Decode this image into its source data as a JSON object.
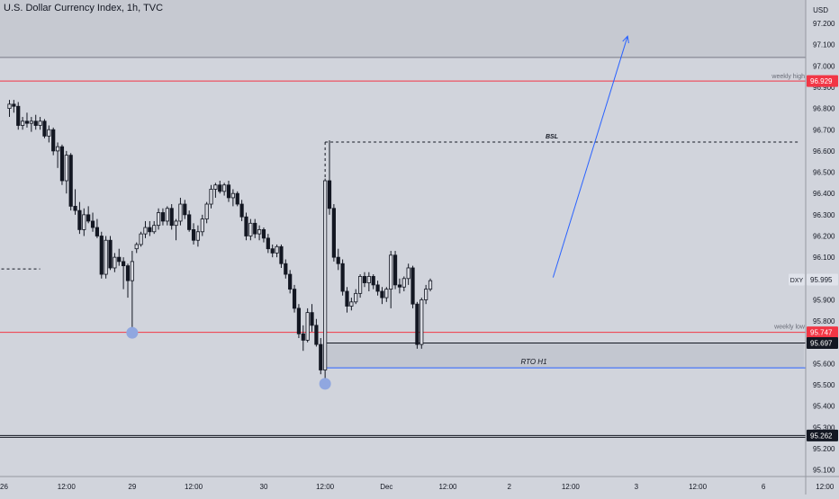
{
  "header": {
    "title": "U.S. Dollar Currency Index, 1h, TVC"
  },
  "colors": {
    "background": "#d1d4dc",
    "upper_zone": "#c6c9d1",
    "candle_up": "#d9dbe2",
    "candle_down": "#131722",
    "wick": "#131722",
    "red_line": "#f23645",
    "blue_drawing": "#2962ff",
    "blue_marker": "#90a7e0",
    "rto_box": "#c3c7d0",
    "axis_text": "#131722",
    "black_tag": "#131722",
    "red_tag": "#f23645"
  },
  "chart_data": {
    "type": "candlestick",
    "title": "U.S. Dollar Currency Index, 1h, TVC",
    "y_unit": "USD",
    "ylim": [
      95.04,
      97.32
    ],
    "y_ticks": [
      97.2,
      97.1,
      97.0,
      96.9,
      96.8,
      96.7,
      96.6,
      96.5,
      96.4,
      96.3,
      96.2,
      96.1,
      96.0,
      95.9,
      95.8,
      95.7,
      95.6,
      95.5,
      95.4,
      95.3,
      95.2,
      95.1
    ],
    "y_tick_labels": [
      "97.200",
      "97.100",
      "97.000",
      "96.900",
      "96.800",
      "96.700",
      "96.600",
      "96.500",
      "96.400",
      "96.300",
      "96.200",
      "96.100",
      "96.000",
      "95.900",
      "95.800",
      "95.700",
      "95.600",
      "95.500",
      "95.400",
      "95.300",
      "95.200",
      "95.100"
    ],
    "x_ticks": [
      {
        "bar": -3,
        "label": "26"
      },
      {
        "bar": 13,
        "label": "12:00"
      },
      {
        "bar": 28,
        "label": "29"
      },
      {
        "bar": 42,
        "label": "12:00"
      },
      {
        "bar": 58,
        "label": "30"
      },
      {
        "bar": 72,
        "label": "12:00"
      },
      {
        "bar": 86,
        "label": "Dec"
      },
      {
        "bar": 100,
        "label": "12:00"
      },
      {
        "bar": 114,
        "label": "2"
      },
      {
        "bar": 128,
        "label": "12:00"
      },
      {
        "bar": 143,
        "label": "3"
      },
      {
        "bar": 157,
        "label": "12:00"
      },
      {
        "bar": 172,
        "label": "6"
      },
      {
        "bar": 186,
        "label": "12:00"
      }
    ],
    "candles": [
      {
        "o": 96.8,
        "h": 96.84,
        "l": 96.76,
        "c": 96.82
      },
      {
        "o": 96.82,
        "h": 96.84,
        "l": 96.78,
        "c": 96.81
      },
      {
        "o": 96.81,
        "h": 96.83,
        "l": 96.7,
        "c": 96.72
      },
      {
        "o": 96.72,
        "h": 96.76,
        "l": 96.7,
        "c": 96.74
      },
      {
        "o": 96.74,
        "h": 96.78,
        "l": 96.71,
        "c": 96.73
      },
      {
        "o": 96.73,
        "h": 96.76,
        "l": 96.69,
        "c": 96.74
      },
      {
        "o": 96.74,
        "h": 96.77,
        "l": 96.7,
        "c": 96.72
      },
      {
        "o": 96.72,
        "h": 96.76,
        "l": 96.7,
        "c": 96.74
      },
      {
        "o": 96.74,
        "h": 96.75,
        "l": 96.66,
        "c": 96.67
      },
      {
        "o": 96.67,
        "h": 96.72,
        "l": 96.64,
        "c": 96.7
      },
      {
        "o": 96.7,
        "h": 96.71,
        "l": 96.58,
        "c": 96.6
      },
      {
        "o": 96.6,
        "h": 96.64,
        "l": 96.52,
        "c": 96.62
      },
      {
        "o": 96.62,
        "h": 96.63,
        "l": 96.44,
        "c": 96.46
      },
      {
        "o": 96.46,
        "h": 96.6,
        "l": 96.4,
        "c": 96.58
      },
      {
        "o": 96.58,
        "h": 96.59,
        "l": 96.32,
        "c": 96.34
      },
      {
        "o": 96.34,
        "h": 96.42,
        "l": 96.3,
        "c": 96.32
      },
      {
        "o": 96.32,
        "h": 96.36,
        "l": 96.21,
        "c": 96.23
      },
      {
        "o": 96.23,
        "h": 96.33,
        "l": 96.2,
        "c": 96.3
      },
      {
        "o": 96.3,
        "h": 96.34,
        "l": 96.26,
        "c": 96.27
      },
      {
        "o": 96.27,
        "h": 96.31,
        "l": 96.22,
        "c": 96.24
      },
      {
        "o": 96.24,
        "h": 96.28,
        "l": 96.19,
        "c": 96.2
      },
      {
        "o": 96.2,
        "h": 96.22,
        "l": 96.0,
        "c": 96.02
      },
      {
        "o": 96.02,
        "h": 96.2,
        "l": 96.0,
        "c": 96.18
      },
      {
        "o": 96.18,
        "h": 96.2,
        "l": 96.04,
        "c": 96.05
      },
      {
        "o": 96.05,
        "h": 96.12,
        "l": 96.03,
        "c": 96.1
      },
      {
        "o": 96.1,
        "h": 96.14,
        "l": 96.06,
        "c": 96.08
      },
      {
        "o": 96.08,
        "h": 96.1,
        "l": 95.95,
        "c": 96.06
      },
      {
        "o": 96.06,
        "h": 96.07,
        "l": 95.91,
        "c": 95.99
      },
      {
        "o": 95.99,
        "h": 96.13,
        "l": 95.76,
        "c": 96.08
      },
      {
        "o": 96.14,
        "h": 96.17,
        "l": 96.12,
        "c": 96.16
      },
      {
        "o": 96.16,
        "h": 96.22,
        "l": 96.15,
        "c": 96.21
      },
      {
        "o": 96.21,
        "h": 96.27,
        "l": 96.19,
        "c": 96.24
      },
      {
        "o": 96.24,
        "h": 96.27,
        "l": 96.2,
        "c": 96.22
      },
      {
        "o": 96.22,
        "h": 96.27,
        "l": 96.21,
        "c": 96.25
      },
      {
        "o": 96.25,
        "h": 96.33,
        "l": 96.23,
        "c": 96.31
      },
      {
        "o": 96.31,
        "h": 96.33,
        "l": 96.25,
        "c": 96.27
      },
      {
        "o": 96.27,
        "h": 96.34,
        "l": 96.25,
        "c": 96.33
      },
      {
        "o": 96.33,
        "h": 96.35,
        "l": 96.23,
        "c": 96.25
      },
      {
        "o": 96.25,
        "h": 96.28,
        "l": 96.18,
        "c": 96.27
      },
      {
        "o": 96.27,
        "h": 96.38,
        "l": 96.25,
        "c": 96.35
      },
      {
        "o": 96.35,
        "h": 96.37,
        "l": 96.28,
        "c": 96.3
      },
      {
        "o": 96.3,
        "h": 96.32,
        "l": 96.22,
        "c": 96.23
      },
      {
        "o": 96.23,
        "h": 96.26,
        "l": 96.16,
        "c": 96.18
      },
      {
        "o": 96.18,
        "h": 96.25,
        "l": 96.15,
        "c": 96.22
      },
      {
        "o": 96.22,
        "h": 96.3,
        "l": 96.2,
        "c": 96.28
      },
      {
        "o": 96.28,
        "h": 96.36,
        "l": 96.26,
        "c": 96.35
      },
      {
        "o": 96.35,
        "h": 96.44,
        "l": 96.33,
        "c": 96.42
      },
      {
        "o": 96.42,
        "h": 96.45,
        "l": 96.38,
        "c": 96.44
      },
      {
        "o": 96.44,
        "h": 96.46,
        "l": 96.4,
        "c": 96.41
      },
      {
        "o": 96.41,
        "h": 96.45,
        "l": 96.39,
        "c": 96.44
      },
      {
        "o": 96.44,
        "h": 96.46,
        "l": 96.36,
        "c": 96.38
      },
      {
        "o": 96.38,
        "h": 96.42,
        "l": 96.34,
        "c": 96.4
      },
      {
        "o": 96.4,
        "h": 96.41,
        "l": 96.34,
        "c": 96.35
      },
      {
        "o": 96.35,
        "h": 96.37,
        "l": 96.27,
        "c": 96.29
      },
      {
        "o": 96.29,
        "h": 96.31,
        "l": 96.18,
        "c": 96.2
      },
      {
        "o": 96.2,
        "h": 96.28,
        "l": 96.18,
        "c": 96.26
      },
      {
        "o": 96.26,
        "h": 96.28,
        "l": 96.19,
        "c": 96.21
      },
      {
        "o": 96.21,
        "h": 96.25,
        "l": 96.18,
        "c": 96.23
      },
      {
        "o": 96.23,
        "h": 96.24,
        "l": 96.17,
        "c": 96.19
      },
      {
        "o": 96.19,
        "h": 96.21,
        "l": 96.12,
        "c": 96.14
      },
      {
        "o": 96.14,
        "h": 96.16,
        "l": 96.1,
        "c": 96.12
      },
      {
        "o": 96.12,
        "h": 96.16,
        "l": 96.1,
        "c": 96.15
      },
      {
        "o": 96.15,
        "h": 96.16,
        "l": 96.05,
        "c": 96.07
      },
      {
        "o": 96.07,
        "h": 96.09,
        "l": 96.0,
        "c": 96.02
      },
      {
        "o": 96.02,
        "h": 96.04,
        "l": 95.93,
        "c": 95.95
      },
      {
        "o": 95.95,
        "h": 95.97,
        "l": 95.84,
        "c": 95.86
      },
      {
        "o": 95.86,
        "h": 95.88,
        "l": 95.72,
        "c": 95.74
      },
      {
        "o": 95.74,
        "h": 95.78,
        "l": 95.66,
        "c": 95.71
      },
      {
        "o": 95.71,
        "h": 95.86,
        "l": 95.7,
        "c": 95.84
      },
      {
        "o": 95.84,
        "h": 95.88,
        "l": 95.75,
        "c": 95.78
      },
      {
        "o": 95.78,
        "h": 95.81,
        "l": 95.68,
        "c": 95.69
      },
      {
        "o": 95.69,
        "h": 95.72,
        "l": 95.55,
        "c": 95.57
      },
      {
        "o": 95.57,
        "h": 96.47,
        "l": 95.51,
        "c": 96.46
      },
      {
        "o": 96.46,
        "h": 96.65,
        "l": 96.3,
        "c": 96.33
      },
      {
        "o": 96.33,
        "h": 96.35,
        "l": 96.08,
        "c": 96.1
      },
      {
        "o": 96.1,
        "h": 96.14,
        "l": 96.04,
        "c": 96.07
      },
      {
        "o": 96.07,
        "h": 96.09,
        "l": 95.92,
        "c": 95.94
      },
      {
        "o": 95.94,
        "h": 95.96,
        "l": 95.84,
        "c": 95.87
      },
      {
        "o": 95.87,
        "h": 95.91,
        "l": 95.85,
        "c": 95.89
      },
      {
        "o": 95.89,
        "h": 95.95,
        "l": 95.88,
        "c": 95.93
      },
      {
        "o": 95.93,
        "h": 96.02,
        "l": 95.91,
        "c": 96.01
      },
      {
        "o": 96.01,
        "h": 96.03,
        "l": 95.96,
        "c": 95.98
      },
      {
        "o": 95.98,
        "h": 96.03,
        "l": 95.94,
        "c": 96.01
      },
      {
        "o": 96.01,
        "h": 96.02,
        "l": 95.95,
        "c": 95.97
      },
      {
        "o": 95.97,
        "h": 95.99,
        "l": 95.92,
        "c": 95.94
      },
      {
        "o": 95.94,
        "h": 95.96,
        "l": 95.88,
        "c": 95.91
      },
      {
        "o": 95.91,
        "h": 95.96,
        "l": 95.89,
        "c": 95.95
      },
      {
        "o": 95.95,
        "h": 96.13,
        "l": 95.86,
        "c": 96.11
      },
      {
        "o": 96.11,
        "h": 96.13,
        "l": 95.95,
        "c": 95.97
      },
      {
        "o": 95.97,
        "h": 96.0,
        "l": 95.93,
        "c": 95.96
      },
      {
        "o": 95.96,
        "h": 96.01,
        "l": 95.94,
        "c": 96.0
      },
      {
        "o": 96.0,
        "h": 96.07,
        "l": 95.97,
        "c": 96.05
      },
      {
        "o": 96.05,
        "h": 96.06,
        "l": 95.86,
        "c": 95.88
      },
      {
        "o": 95.88,
        "h": 95.89,
        "l": 95.67,
        "c": 95.69
      },
      {
        "o": 95.69,
        "h": 95.91,
        "l": 95.67,
        "c": 95.9
      },
      {
        "o": 95.9,
        "h": 95.97,
        "l": 95.88,
        "c": 95.95
      },
      {
        "o": 95.95,
        "h": 96.0,
        "l": 95.94,
        "c": 95.99
      }
    ],
    "horizontal_lines": [
      {
        "value": 97.04,
        "style": "solid",
        "color": "#787b86"
      },
      {
        "value": 96.929,
        "style": "solid",
        "color": "#f23645",
        "label": "weekly high"
      },
      {
        "value": 95.747,
        "style": "solid",
        "color": "#f23645",
        "label": "weekly low"
      },
      {
        "value": 95.262,
        "style": "solid",
        "color": "#131722"
      }
    ],
    "zones": [
      {
        "from": 97.04,
        "to": 97.32,
        "label": ""
      },
      {
        "from": 95.58,
        "to": 95.697,
        "label": "RTO H1"
      }
    ],
    "level_lines": [
      {
        "name": "BSL",
        "value": 96.642,
        "start_bar": 72,
        "end_bar": 180,
        "style": "dashed"
      },
      {
        "name": "",
        "value": 96.045,
        "start_bar": -8,
        "end_bar": 7,
        "style": "dashed"
      },
      {
        "name": "",
        "value": 95.697,
        "start_bar": 72,
        "end_bar": 195,
        "style": "solid"
      },
      {
        "name": "",
        "value": 95.58,
        "start_bar": 72,
        "end_bar": 195,
        "style": "solid-blue"
      }
    ],
    "bsl_value": 96.642,
    "rto_label": "RTO H1",
    "arrow": {
      "from_bar": 124,
      "from_value": 96.005,
      "to_bar": 141,
      "to_value": 97.14
    },
    "markers": [
      {
        "bar": 28,
        "value": 95.745
      },
      {
        "bar": 72,
        "value": 95.505
      }
    ],
    "price_tags": [
      {
        "value": 96.929,
        "label": "96.929",
        "style": "red"
      },
      {
        "value": 95.995,
        "label": "95.995",
        "style": "light",
        "symbol": "DXY"
      },
      {
        "value": 95.747,
        "label": "95.747",
        "style": "red"
      },
      {
        "value": 95.697,
        "label": "95.697",
        "style": "black"
      },
      {
        "value": 95.262,
        "label": "95.262",
        "style": "black"
      }
    ],
    "line_labels": {
      "weekly_high": "weekly high",
      "weekly_low": "weekly low"
    }
  }
}
